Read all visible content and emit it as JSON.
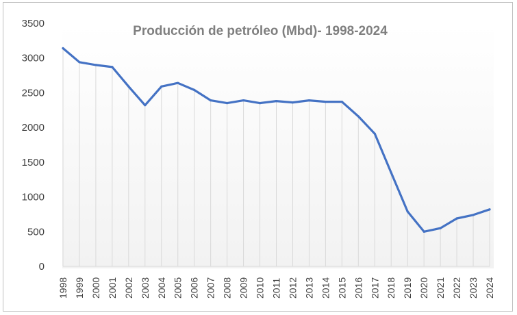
{
  "chart_data": {
    "type": "line",
    "title": "Producción  de petróleo (Mbd)-  1998-2024",
    "xlabel": "",
    "ylabel": "",
    "ylim": [
      0,
      3500
    ],
    "yticks": [
      "0",
      "500",
      "1000",
      "1500",
      "2000",
      "2500",
      "3000",
      "3500"
    ],
    "categories": [
      "1998",
      "1999",
      "2000",
      "2001",
      "2002",
      "2003",
      "2004",
      "2005",
      "2006",
      "2007",
      "2008",
      "2009",
      "2010",
      "2011",
      "2012",
      "2013",
      "2014",
      "2015",
      "2016",
      "2017",
      "2018",
      "2019",
      "2020",
      "2021",
      "2022",
      "2023",
      "2024"
    ],
    "series": [
      {
        "values": [
          3140,
          2940,
          2900,
          2870,
          2590,
          2320,
          2590,
          2640,
          2540,
          2390,
          2350,
          2390,
          2350,
          2380,
          2360,
          2390,
          2370,
          2370,
          2160,
          1910,
          1350,
          790,
          500,
          550,
          690,
          740,
          820
        ]
      }
    ],
    "grid": "vertical drop lines",
    "legend": "none",
    "colors": {
      "line": "#4472c4",
      "droplines": "#d9d9d9",
      "text": "#404040",
      "title": "#7f7f7f"
    }
  }
}
